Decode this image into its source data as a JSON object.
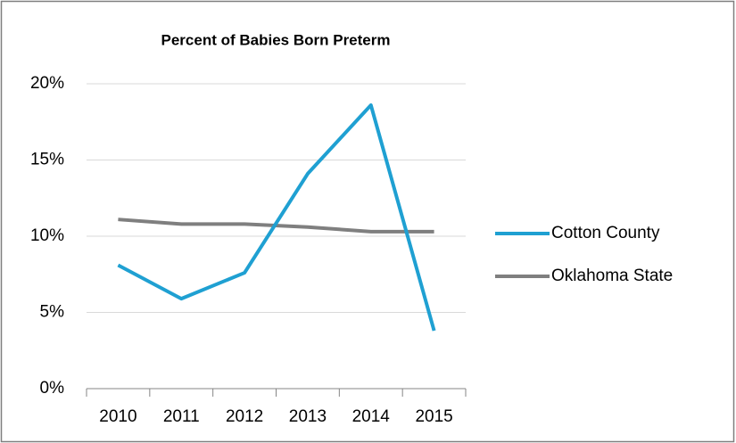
{
  "chart_data": {
    "type": "line",
    "title": "Percent of Babies Born Preterm",
    "categories": [
      "2010",
      "2011",
      "2012",
      "2013",
      "2014",
      "2015"
    ],
    "series": [
      {
        "name": "Cotton County",
        "color": "#1fa0d2",
        "values": [
          8.1,
          5.9,
          7.6,
          14.1,
          18.6,
          3.8
        ]
      },
      {
        "name": "Oklahoma State",
        "color": "#7f7f7f",
        "values": [
          11.1,
          10.8,
          10.8,
          10.6,
          10.3,
          10.3
        ]
      }
    ],
    "ylim": [
      0,
      20
    ],
    "yticks": [
      {
        "value": 0,
        "label": "0%"
      },
      {
        "value": 5,
        "label": "5%"
      },
      {
        "value": 10,
        "label": "10%"
      },
      {
        "value": 15,
        "label": "15%"
      },
      {
        "value": 20,
        "label": "20%"
      }
    ],
    "grid": true,
    "legend": "right"
  }
}
